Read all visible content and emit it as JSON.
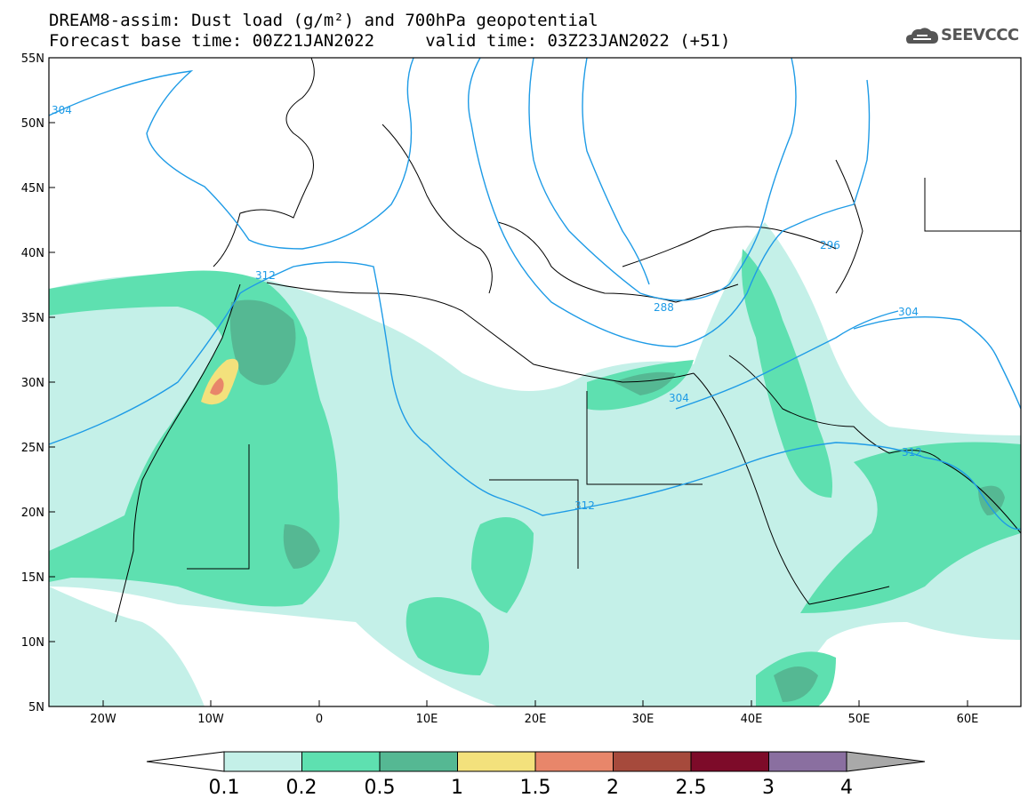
{
  "header": {
    "title_line1": "DREAM8-assim: Dust load (g/m²) and 700hPa geopotential",
    "title_line2": "Forecast base time: 00Z21JAN2022     valid time: 03Z23JAN2022 (+51)",
    "logo_text": "SEEVCCC"
  },
  "map": {
    "lat_labels": [
      "55N",
      "50N",
      "45N",
      "40N",
      "35N",
      "30N",
      "25N",
      "20N",
      "15N",
      "10N",
      "5N"
    ],
    "lon_labels": [
      "20W",
      "10W",
      "0",
      "10E",
      "20E",
      "30E",
      "40E",
      "50E",
      "60E"
    ],
    "contour_labels": [
      "304",
      "312",
      "288",
      "296",
      "304",
      "304",
      "312",
      "312"
    ]
  },
  "colorbar": {
    "labels": [
      "0.1",
      "0.2",
      "0.5",
      "1",
      "1.5",
      "2",
      "2.5",
      "3",
      "4"
    ],
    "colors": [
      "#c4f0e8",
      "#5ee0b0",
      "#55b893",
      "#f3e17c",
      "#e8866a",
      "#a64a3c",
      "#7d0b29",
      "#8a6fa0"
    ],
    "under_color": "#ffffff",
    "over_color": "#a9a9a9"
  },
  "colors": {
    "contour": "#1e9be6",
    "coast": "#000000"
  }
}
